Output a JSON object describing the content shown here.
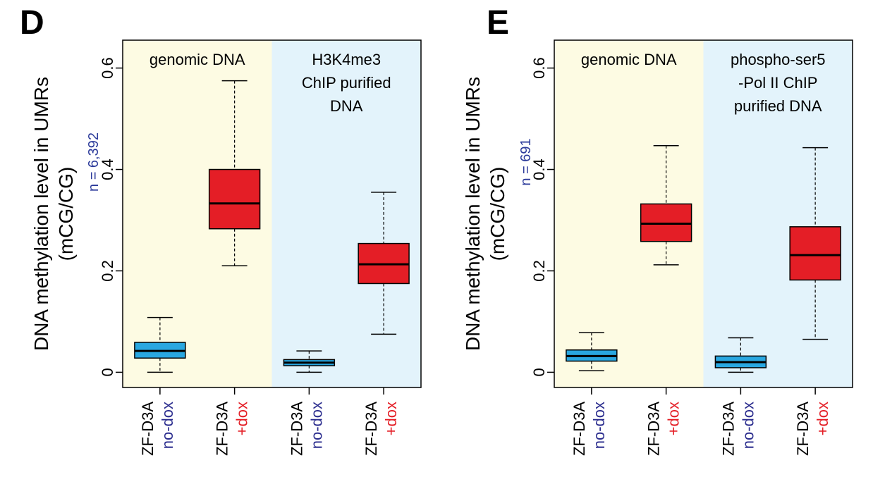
{
  "colors": {
    "genomic_bg": "#fdfbe3",
    "chip_bg": "#e3f3fb",
    "no_dox_box": "#29a7e1",
    "dox_box": "#e41e26",
    "no_dox_text": "#2b2d8e",
    "dox_text": "#e41e26",
    "n_text": "#2b3a9a"
  },
  "chart_data": [
    {
      "type": "box",
      "panel": "D",
      "ylabel_line1": "DNA methylation level in UMRs",
      "ylabel_line2": "(mCG/CG)",
      "n_label": "n = 6,392",
      "ylim": [
        -0.03,
        0.655
      ],
      "yticks": [
        0,
        0.2,
        0.4,
        0.6
      ],
      "ytick_labels": [
        "0",
        "0.2",
        "0.4",
        "0.6"
      ],
      "regions": [
        {
          "name": "genomic",
          "label_lines": [
            "genomic DNA"
          ],
          "from": 0.5,
          "to": 2.5,
          "color": "#fdfbe3"
        },
        {
          "name": "chip",
          "label_lines": [
            "H3K4me3",
            "ChIP purified",
            "DNA"
          ],
          "from": 2.5,
          "to": 4.5,
          "color": "#e3f3fb"
        }
      ],
      "boxes": [
        {
          "line1": "ZF-D3A",
          "line2": "no-dox",
          "group": "no-dox",
          "whisker_low": 0.0,
          "q1": 0.028,
          "median": 0.042,
          "q3": 0.059,
          "whisker_high": 0.108
        },
        {
          "line1": "ZF-D3A",
          "line2": "+dox",
          "group": "dox",
          "whisker_low": 0.21,
          "q1": 0.283,
          "median": 0.333,
          "q3": 0.4,
          "whisker_high": 0.575
        },
        {
          "line1": "ZF-D3A",
          "line2": "no-dox",
          "group": "no-dox",
          "whisker_low": 0.0,
          "q1": 0.013,
          "median": 0.019,
          "q3": 0.025,
          "whisker_high": 0.042
        },
        {
          "line1": "ZF-D3A",
          "line2": "+dox",
          "group": "dox",
          "whisker_low": 0.075,
          "q1": 0.175,
          "median": 0.213,
          "q3": 0.254,
          "whisker_high": 0.355
        }
      ]
    },
    {
      "type": "box",
      "panel": "E",
      "ylabel_line1": "DNA methylation level in UMRs",
      "ylabel_line2": "(mCG/CG)",
      "n_label": "n = 691",
      "ylim": [
        -0.03,
        0.655
      ],
      "yticks": [
        0,
        0.2,
        0.4,
        0.6
      ],
      "ytick_labels": [
        "0",
        "0.2",
        "0.4",
        "0.6"
      ],
      "regions": [
        {
          "name": "genomic",
          "label_lines": [
            "genomic DNA"
          ],
          "from": 0.5,
          "to": 2.5,
          "color": "#fdfbe3"
        },
        {
          "name": "chip",
          "label_lines": [
            "phospho-ser5",
            "-Pol II ChIP",
            "purified DNA"
          ],
          "from": 2.5,
          "to": 4.5,
          "color": "#e3f3fb"
        }
      ],
      "boxes": [
        {
          "line1": "ZF-D3A",
          "line2": "no-dox",
          "group": "no-dox",
          "whisker_low": 0.003,
          "q1": 0.022,
          "median": 0.032,
          "q3": 0.044,
          "whisker_high": 0.078
        },
        {
          "line1": "ZF-D3A",
          "line2": "+dox",
          "group": "dox",
          "whisker_low": 0.212,
          "q1": 0.258,
          "median": 0.293,
          "q3": 0.332,
          "whisker_high": 0.447
        },
        {
          "line1": "ZF-D3A",
          "line2": "no-dox",
          "group": "no-dox",
          "whisker_low": 0.0,
          "q1": 0.009,
          "median": 0.02,
          "q3": 0.032,
          "whisker_high": 0.068
        },
        {
          "line1": "ZF-D3A",
          "line2": "+dox",
          "group": "dox",
          "whisker_low": 0.065,
          "q1": 0.182,
          "median": 0.231,
          "q3": 0.287,
          "whisker_high": 0.443
        }
      ]
    }
  ]
}
